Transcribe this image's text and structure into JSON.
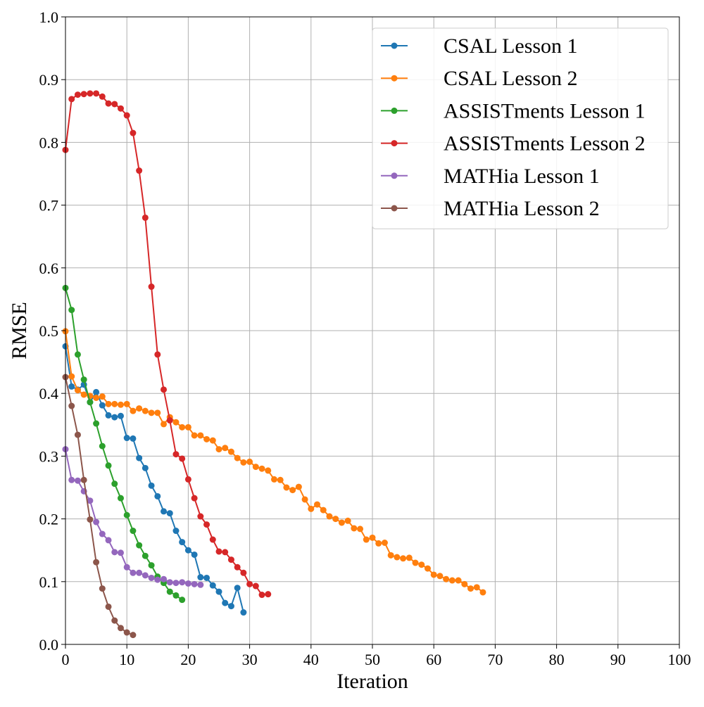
{
  "chart_data": {
    "type": "line",
    "title": "",
    "xlabel": "Iteration",
    "ylabel": "RMSE",
    "xlim": [
      0,
      100
    ],
    "ylim": [
      0,
      1.0
    ],
    "xticks": [
      "0",
      "10",
      "20",
      "30",
      "40",
      "50",
      "60",
      "70",
      "80",
      "90",
      "100"
    ],
    "yticks": [
      "0.0",
      "0.1",
      "0.2",
      "0.3",
      "0.4",
      "0.5",
      "0.6",
      "0.7",
      "0.8",
      "0.9",
      "1.0"
    ],
    "grid": true,
    "legend_position": "top-right",
    "series": [
      {
        "name": "CSAL Lesson 1",
        "color": "#1f77b4",
        "values": [
          0.475,
          0.411,
          0.406,
          0.414,
          0.386,
          0.402,
          0.381,
          0.365,
          0.362,
          0.364,
          0.329,
          0.328,
          0.297,
          0.281,
          0.253,
          0.236,
          0.212,
          0.209,
          0.181,
          0.163,
          0.15,
          0.143,
          0.107,
          0.106,
          0.094,
          0.084,
          0.066,
          0.061,
          0.09,
          0.051
        ]
      },
      {
        "name": "CSAL Lesson 2",
        "color": "#ff7f0e",
        "values": [
          0.499,
          0.427,
          0.405,
          0.398,
          0.396,
          0.393,
          0.395,
          0.383,
          0.383,
          0.382,
          0.383,
          0.372,
          0.376,
          0.372,
          0.369,
          0.369,
          0.351,
          0.362,
          0.354,
          0.346,
          0.346,
          0.333,
          0.333,
          0.327,
          0.325,
          0.311,
          0.313,
          0.307,
          0.297,
          0.29,
          0.291,
          0.283,
          0.28,
          0.277,
          0.263,
          0.262,
          0.25,
          0.246,
          0.251,
          0.231,
          0.216,
          0.223,
          0.214,
          0.204,
          0.2,
          0.194,
          0.197,
          0.185,
          0.184,
          0.167,
          0.17,
          0.161,
          0.162,
          0.142,
          0.139,
          0.137,
          0.138,
          0.13,
          0.127,
          0.121,
          0.111,
          0.109,
          0.104,
          0.102,
          0.102,
          0.096,
          0.089,
          0.091,
          0.083
        ]
      },
      {
        "name": "ASSISTments Lesson 1",
        "color": "#2ca02c",
        "values": [
          0.568,
          0.533,
          0.462,
          0.422,
          0.386,
          0.352,
          0.316,
          0.285,
          0.256,
          0.233,
          0.206,
          0.181,
          0.158,
          0.141,
          0.126,
          0.108,
          0.098,
          0.084,
          0.078,
          0.071
        ]
      },
      {
        "name": "ASSISTments Lesson 2",
        "color": "#d62728",
        "values": [
          0.788,
          0.869,
          0.876,
          0.877,
          0.878,
          0.878,
          0.873,
          0.862,
          0.861,
          0.854,
          0.843,
          0.815,
          0.755,
          0.68,
          0.57,
          0.462,
          0.406,
          0.357,
          0.303,
          0.296,
          0.263,
          0.233,
          0.204,
          0.191,
          0.167,
          0.148,
          0.147,
          0.135,
          0.123,
          0.114,
          0.096,
          0.093,
          0.079,
          0.08
        ]
      },
      {
        "name": "MATHia Lesson 1",
        "color": "#9467bd",
        "values": [
          0.311,
          0.262,
          0.261,
          0.244,
          0.229,
          0.195,
          0.176,
          0.166,
          0.147,
          0.146,
          0.123,
          0.114,
          0.114,
          0.11,
          0.106,
          0.103,
          0.104,
          0.099,
          0.098,
          0.099,
          0.097,
          0.096,
          0.095
        ]
      },
      {
        "name": "MATHia Lesson 2",
        "color": "#8c564b",
        "values": [
          0.426,
          0.38,
          0.334,
          0.262,
          0.199,
          0.131,
          0.089,
          0.06,
          0.038,
          0.026,
          0.019,
          0.015
        ]
      }
    ]
  }
}
